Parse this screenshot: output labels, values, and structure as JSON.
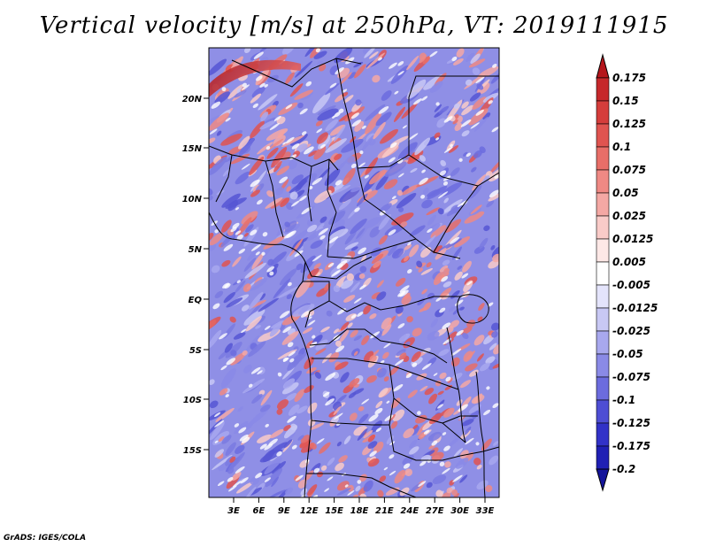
{
  "title": "Vertical velocity [m/s] at 250hPa, VT: 2019111915",
  "credit": "GrADS: IGES/COLA",
  "map": {
    "lat_labels": [
      "20N",
      "15N",
      "10N",
      "5N",
      "EQ",
      "5S",
      "10S",
      "15S"
    ],
    "lon_labels": [
      "3E",
      "6E",
      "9E",
      "12E",
      "15E",
      "18E",
      "21E",
      "24E",
      "27E",
      "30E",
      "33E"
    ]
  },
  "colorbar": {
    "levels": [
      "0.175",
      "0.15",
      "0.125",
      "0.1",
      "0.075",
      "0.05",
      "0.025",
      "0.0125",
      "0.005",
      "-0.005",
      "-0.0125",
      "-0.025",
      "-0.05",
      "-0.075",
      "-0.1",
      "-0.125",
      "-0.175",
      "-0.2"
    ],
    "colors": [
      "#b5161c",
      "#c6282b",
      "#d53d3b",
      "#e05450",
      "#e86e68",
      "#ef8984",
      "#f4a8a4",
      "#f9cbc8",
      "#fde8e6",
      "#ffffff",
      "#e4e4fb",
      "#c8c8f4",
      "#a8a8ee",
      "#8a8ae6",
      "#6c6cde",
      "#4e4ed4",
      "#3232c8",
      "#2020b4",
      "#14149a"
    ]
  }
}
